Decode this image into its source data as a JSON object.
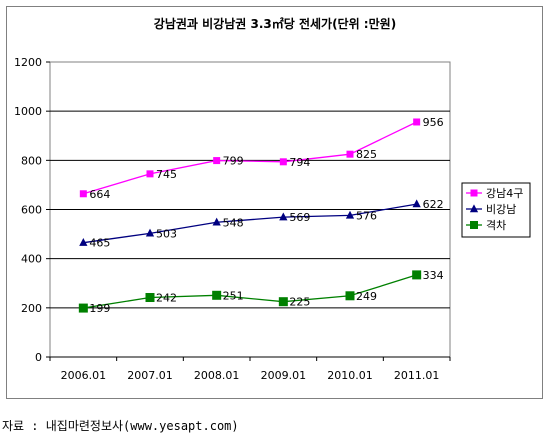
{
  "chart_data": {
    "type": "line",
    "title": "강남권과 비강남권 3.3㎡당 전세가(단위 :만원)",
    "categories": [
      "2006.01",
      "2007.01",
      "2008.01",
      "2009.01",
      "2010.01",
      "2011.01"
    ],
    "ylim": [
      0,
      1200
    ],
    "yticks": [
      "0",
      "200",
      "400",
      "600",
      "800",
      "1000",
      "1200"
    ],
    "grid": true,
    "legend_position": "right",
    "series": [
      {
        "name": "강남4구",
        "values": [
          664,
          745,
          799,
          794,
          825,
          956
        ],
        "color": "#ff00ff",
        "marker": "square"
      },
      {
        "name": "비강남",
        "values": [
          465,
          503,
          548,
          569,
          576,
          622
        ],
        "color": "#000080",
        "marker": "triangle"
      },
      {
        "name": "격차",
        "values": [
          199,
          242,
          251,
          225,
          249,
          334
        ],
        "color": "#008000",
        "marker": "square"
      }
    ]
  },
  "source_note": "자료 : 내집마련정보사(www.yesapt.com)"
}
